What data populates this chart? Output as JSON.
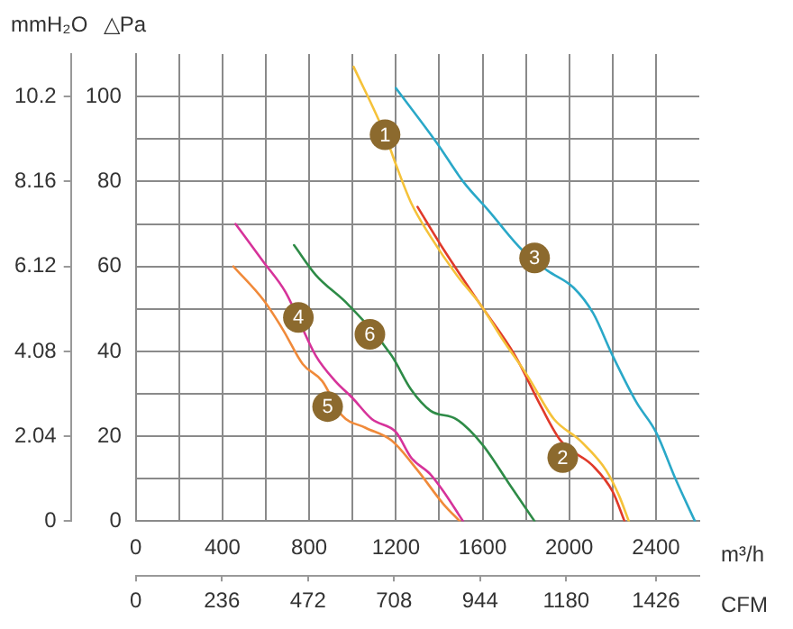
{
  "chart_data": {
    "type": "line",
    "xlabel": "m³/h",
    "x2label": "CFM",
    "ylabel": "△Pa",
    "y2label": "mmH₂O",
    "xlim": [
      0,
      2600
    ],
    "xticks": [
      0,
      {
        "value": 200,
        "label": null
      },
      400,
      {
        "value": 600,
        "label": null
      },
      800,
      {
        "value": 1000,
        "label": null
      },
      1200,
      {
        "value": 1400,
        "label": null
      },
      1600,
      {
        "value": 1800,
        "label": null
      },
      2000,
      {
        "value": 2200,
        "label": null
      },
      2400
    ],
    "x2lim": [
      0,
      1545
    ],
    "x2ticks": [
      0,
      236,
      472,
      708,
      944,
      1180,
      1426
    ],
    "ylim": [
      0,
      110
    ],
    "yticks": [
      0,
      {
        "value": 10,
        "label": null
      },
      20,
      {
        "value": 30,
        "label": null
      },
      40,
      {
        "value": 50,
        "label": null
      },
      60,
      {
        "value": 70,
        "label": null
      },
      80,
      {
        "value": 90,
        "label": null
      },
      100
    ],
    "y2lim": [
      0,
      11.22
    ],
    "y2ticks": [
      0,
      2.04,
      4.08,
      6.12,
      8.16,
      10.2
    ],
    "grid": true,
    "legend": false,
    "marker": "none",
    "line_style": "solid",
    "series": [
      {
        "color": "#f5c23a",
        "x": [
          1005,
          1150,
          1200,
          1270,
          1360,
          1480,
          1590,
          1690,
          1810,
          1930,
          2050,
          2170,
          2230,
          2275
        ],
        "values": [
          107,
          91,
          84,
          75,
          67,
          58,
          51,
          43,
          34,
          24,
          19,
          12,
          6,
          0
        ]
      },
      {
        "color": "#e03a2a",
        "x": [
          1300,
          1420,
          1590,
          1750,
          1870,
          1960,
          2110,
          2200,
          2255
        ],
        "values": [
          74,
          64,
          51,
          39,
          27,
          19,
          13,
          7,
          0
        ]
      },
      {
        "color": "#2aa8c8",
        "x": [
          1200,
          1390,
          1510,
          1630,
          1780,
          1900,
          2020,
          2110,
          2200,
          2310,
          2400,
          2490,
          2580
        ],
        "values": [
          102,
          89,
          80,
          73,
          64,
          59,
          55,
          49,
          39,
          28,
          21,
          10,
          0
        ]
      },
      {
        "color": "#d6339a",
        "x": [
          460,
          590,
          690,
          830,
          920,
          1000,
          1090,
          1200,
          1270,
          1360,
          1420,
          1510
        ],
        "values": [
          70,
          61,
          54,
          39,
          33,
          29,
          24,
          21,
          15,
          11,
          7,
          0
        ]
      },
      {
        "color": "#f08a3a",
        "x": [
          450,
          590,
          680,
          770,
          860,
          950,
          1060,
          1180,
          1300,
          1420,
          1495
        ],
        "values": [
          60,
          52,
          45,
          37,
          33,
          25,
          22,
          19,
          12,
          4,
          0
        ]
      },
      {
        "color": "#2e8b47",
        "x": [
          730,
          830,
          980,
          1180,
          1270,
          1360,
          1480,
          1600,
          1720,
          1840
        ],
        "values": [
          65,
          58,
          51,
          39,
          31,
          26,
          24,
          18,
          9,
          0
        ]
      }
    ],
    "annotations": [
      {
        "text": "1",
        "x": 1150,
        "y": 91
      },
      {
        "text": "2",
        "x": 1970,
        "y": 15
      },
      {
        "text": "3",
        "x": 1840,
        "y": 62
      },
      {
        "text": "4",
        "x": 750,
        "y": 48
      },
      {
        "text": "5",
        "x": 885,
        "y": 27
      },
      {
        "text": "6",
        "x": 1080,
        "y": 44
      }
    ]
  }
}
